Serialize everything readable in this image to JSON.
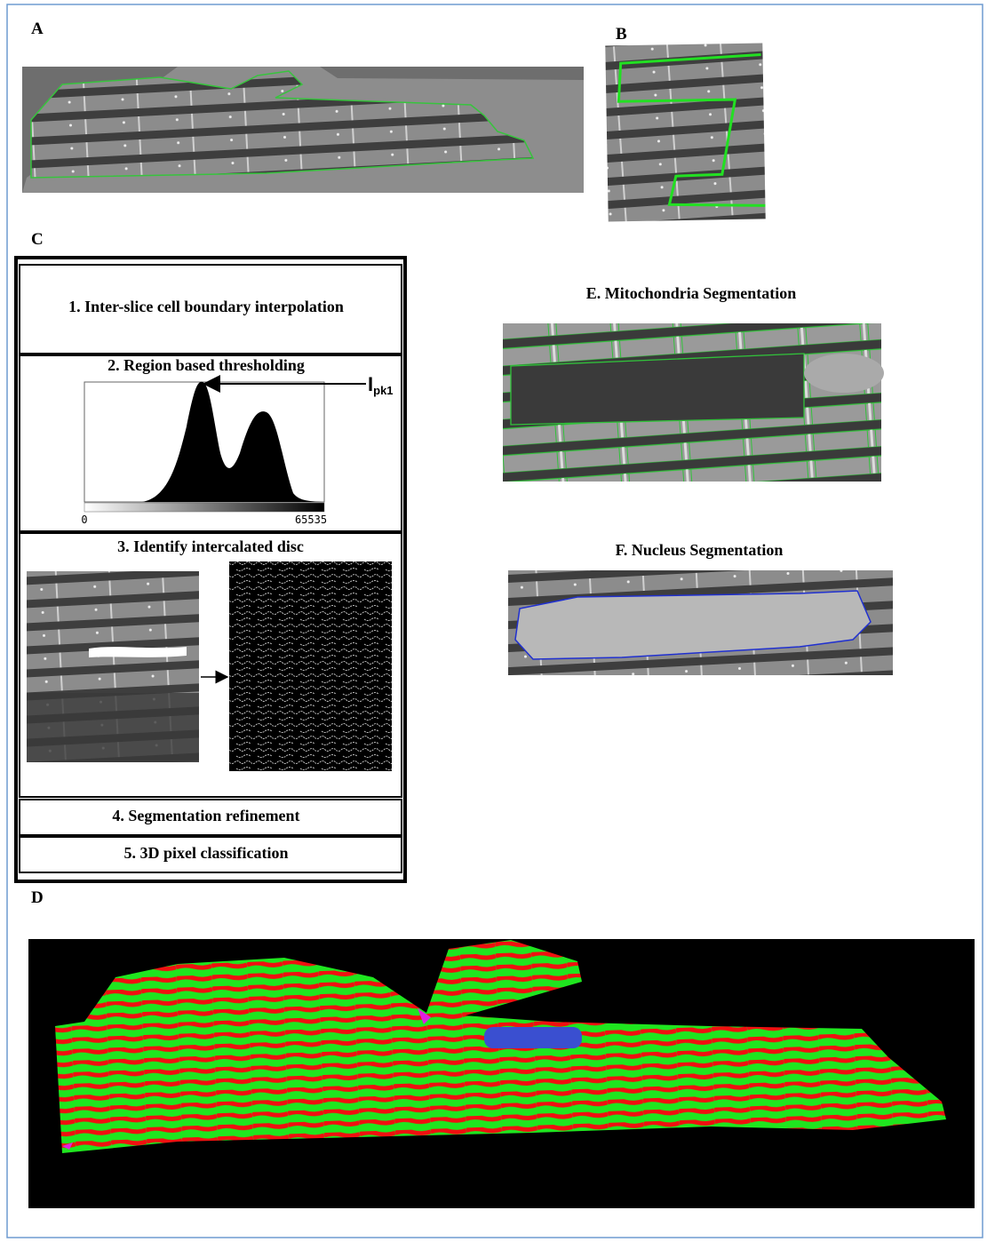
{
  "panels": {
    "a": {
      "label": "A"
    },
    "b": {
      "label": "B"
    },
    "c": {
      "label": "C",
      "steps": [
        "1. Inter-slice cell boundary interpolation",
        "2. Region based thresholding",
        "3. Identify intercalated disc",
        "4. Segmentation refinement",
        "5. 3D pixel classification"
      ],
      "histogram": {
        "peak_label": "I",
        "peak_subscript": "pk1",
        "axis_min": 0,
        "axis_max": 65535
      }
    },
    "d": {
      "label": "D"
    },
    "e": {
      "title": "E. Mitochondria Segmentation"
    },
    "f": {
      "title": "F. Nucleus Segmentation"
    }
  }
}
